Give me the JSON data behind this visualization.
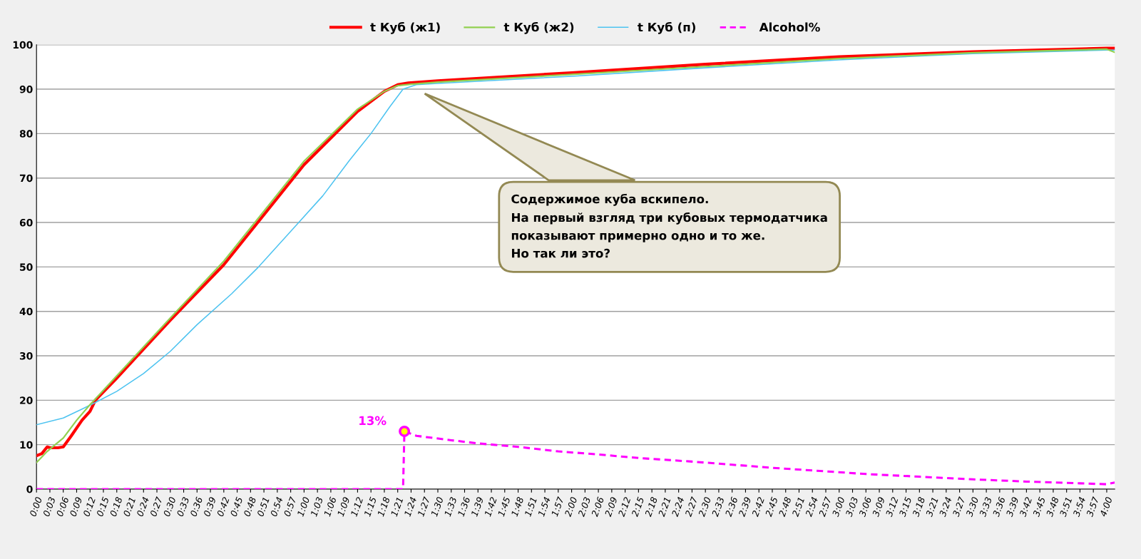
{
  "chart_data": {
    "type": "line",
    "xlim": [
      0,
      4.03
    ],
    "ylim": [
      0,
      100
    ],
    "yticks": [
      0,
      10,
      20,
      30,
      40,
      50,
      60,
      70,
      80,
      90,
      100
    ],
    "xticks": [
      {
        "value": 0,
        "label": "0:00"
      },
      {
        "value": 0.05,
        "label": "0:03"
      },
      {
        "value": 0.1,
        "label": "0:06"
      },
      {
        "value": 0.15,
        "label": "0:09"
      },
      {
        "value": 0.2,
        "label": "0:12"
      },
      {
        "value": 0.25,
        "label": "0:15"
      },
      {
        "value": 0.3,
        "label": "0:18"
      },
      {
        "value": 0.35,
        "label": "0:21"
      },
      {
        "value": 0.4,
        "label": "0:24"
      },
      {
        "value": 0.45,
        "label": "0:27"
      },
      {
        "value": 0.5,
        "label": "0:30"
      },
      {
        "value": 0.55,
        "label": "0:33"
      },
      {
        "value": 0.6,
        "label": "0:36"
      },
      {
        "value": 0.65,
        "label": "0:39"
      },
      {
        "value": 0.7,
        "label": "0:42"
      },
      {
        "value": 0.75,
        "label": "0:45"
      },
      {
        "value": 0.8,
        "label": "0:48"
      },
      {
        "value": 0.85,
        "label": "0:51"
      },
      {
        "value": 0.9,
        "label": "0:54"
      },
      {
        "value": 0.95,
        "label": "0:57"
      },
      {
        "value": 1,
        "label": "1:00"
      },
      {
        "value": 1.05,
        "label": "1:03"
      },
      {
        "value": 1.1,
        "label": "1:06"
      },
      {
        "value": 1.15,
        "label": "1:09"
      },
      {
        "value": 1.2,
        "label": "1:12"
      },
      {
        "value": 1.25,
        "label": "1:15"
      },
      {
        "value": 1.3,
        "label": "1:18"
      },
      {
        "value": 1.35,
        "label": "1:21"
      },
      {
        "value": 1.4,
        "label": "1:24"
      },
      {
        "value": 1.45,
        "label": "1:27"
      },
      {
        "value": 1.5,
        "label": "1:30"
      },
      {
        "value": 1.55,
        "label": "1:33"
      },
      {
        "value": 1.6,
        "label": "1:36"
      },
      {
        "value": 1.65,
        "label": "1:39"
      },
      {
        "value": 1.7,
        "label": "1:42"
      },
      {
        "value": 1.75,
        "label": "1:45"
      },
      {
        "value": 1.8,
        "label": "1:48"
      },
      {
        "value": 1.85,
        "label": "1:51"
      },
      {
        "value": 1.9,
        "label": "1:54"
      },
      {
        "value": 1.95,
        "label": "1:57"
      },
      {
        "value": 2,
        "label": "2:00"
      },
      {
        "value": 2.05,
        "label": "2:03"
      },
      {
        "value": 2.1,
        "label": "2:06"
      },
      {
        "value": 2.15,
        "label": "2:09"
      },
      {
        "value": 2.2,
        "label": "2:12"
      },
      {
        "value": 2.25,
        "label": "2:15"
      },
      {
        "value": 2.3,
        "label": "2:18"
      },
      {
        "value": 2.35,
        "label": "2:21"
      },
      {
        "value": 2.4,
        "label": "2:24"
      },
      {
        "value": 2.45,
        "label": "2:27"
      },
      {
        "value": 2.5,
        "label": "2:30"
      },
      {
        "value": 2.55,
        "label": "2:33"
      },
      {
        "value": 2.6,
        "label": "2:36"
      },
      {
        "value": 2.65,
        "label": "2:39"
      },
      {
        "value": 2.7,
        "label": "2:42"
      },
      {
        "value": 2.75,
        "label": "2:45"
      },
      {
        "value": 2.8,
        "label": "2:48"
      },
      {
        "value": 2.85,
        "label": "2:51"
      },
      {
        "value": 2.9,
        "label": "2:54"
      },
      {
        "value": 2.95,
        "label": "2:57"
      },
      {
        "value": 3,
        "label": "3:00"
      },
      {
        "value": 3.05,
        "label": "3:03"
      },
      {
        "value": 3.1,
        "label": "3:06"
      },
      {
        "value": 3.15,
        "label": "3:09"
      },
      {
        "value": 3.2,
        "label": "3:12"
      },
      {
        "value": 3.25,
        "label": "3:15"
      },
      {
        "value": 3.3,
        "label": "3:18"
      },
      {
        "value": 3.35,
        "label": "3:21"
      },
      {
        "value": 3.4,
        "label": "3:24"
      },
      {
        "value": 3.45,
        "label": "3:27"
      },
      {
        "value": 3.5,
        "label": "3:30"
      },
      {
        "value": 3.55,
        "label": "3:33"
      },
      {
        "value": 3.6,
        "label": "3:36"
      },
      {
        "value": 3.65,
        "label": "3:39"
      },
      {
        "value": 3.7,
        "label": "3:42"
      },
      {
        "value": 3.75,
        "label": "3:45"
      },
      {
        "value": 3.8,
        "label": "3:48"
      },
      {
        "value": 3.85,
        "label": "3:51"
      },
      {
        "value": 3.9,
        "label": "3:54"
      },
      {
        "value": 3.95,
        "label": "3:57"
      },
      {
        "value": 4,
        "label": "4:00"
      }
    ],
    "grid": "y",
    "legend": "top",
    "marker": "none",
    "series": [
      {
        "name": "t Куб (ж1)",
        "color": "#ff0000",
        "line_style": "solid",
        "x": [
          0,
          0.02,
          0.04,
          0.05,
          0.08,
          0.1,
          0.13,
          0.17,
          0.2,
          0.22,
          0.3,
          0.5,
          0.7,
          1.0,
          1.2,
          1.3,
          1.35,
          1.39,
          1.5,
          2.0,
          2.5,
          3.0,
          3.5,
          4.0,
          4.03
        ],
        "values": [
          7.5,
          8,
          9.5,
          9.3,
          9.3,
          9.5,
          12,
          15.5,
          17.5,
          20,
          25,
          38,
          50.5,
          73,
          85,
          89.5,
          91,
          91.4,
          91.9,
          93.7,
          95.6,
          97.3,
          98.4,
          99.2,
          99.2
        ]
      },
      {
        "name": "t Куб (ж2)",
        "color": "#92d050",
        "line_style": "solid",
        "x": [
          0,
          0.04,
          0.07,
          0.1,
          0.15,
          0.2,
          0.22,
          0.3,
          0.5,
          0.7,
          1.0,
          1.2,
          1.3,
          1.35,
          1.4,
          1.5,
          2.0,
          2.5,
          3.0,
          3.5,
          4.0,
          4.03
        ],
        "values": [
          6,
          8.5,
          10,
          11.5,
          15.5,
          19,
          20.3,
          25.5,
          38.5,
          51.3,
          73.8,
          85.5,
          89.5,
          90.8,
          91.1,
          91.6,
          93.3,
          95.1,
          96.9,
          98.2,
          99,
          98.3
        ]
      },
      {
        "name": "t Куб (п)",
        "color": "#4dc3f0",
        "line_style": "solid",
        "x": [
          0,
          0.1,
          0.17,
          0.22,
          0.3,
          0.4,
          0.5,
          0.6,
          0.73,
          0.83,
          0.95,
          1.07,
          1.17,
          1.25,
          1.32,
          1.37,
          1.42,
          1.5,
          2.0,
          2.5,
          3.0,
          3.5,
          4.0,
          4.03
        ],
        "values": [
          14.5,
          16,
          18,
          19.5,
          22,
          26,
          31,
          37,
          44,
          50,
          58,
          66,
          74,
          80,
          86,
          90,
          91,
          91.3,
          92.9,
          94.8,
          96.6,
          98,
          98.8,
          98.8
        ]
      },
      {
        "name": "Alcohol%",
        "color": "#ff00ff",
        "line_style": "dashed",
        "x": [
          0,
          1.37,
          1.375,
          1.42,
          1.55,
          1.65,
          1.8,
          1.95,
          2.1,
          2.25,
          2.45,
          2.6,
          2.75,
          2.95,
          3.1,
          3.3,
          3.5,
          3.7,
          3.9,
          4.0,
          4.03
        ],
        "values": [
          0,
          0,
          13,
          12,
          11,
          10.3,
          9.5,
          8.5,
          7.8,
          7,
          6.2,
          5.5,
          4.8,
          4,
          3.4,
          2.8,
          2.2,
          1.7,
          1.3,
          1.1,
          1.5
        ]
      }
    ],
    "annotations": [
      {
        "text": "13%",
        "x": 1.375,
        "y": 13
      },
      "Содержимое куба вскипело.\nНа первый взгляд три кубовых термодатчика\nпоказывают примерно одно и то же.\nНо так ли это?"
    ]
  }
}
